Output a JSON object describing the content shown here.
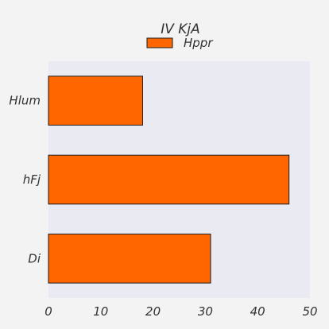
{
  "chart_data": {
    "type": "bar",
    "orientation": "horizontal",
    "title": "IV KjA",
    "categories": [
      "Hlum",
      "hFj",
      "Di"
    ],
    "series": [
      {
        "name": "Hppr",
        "values": [
          18,
          46,
          31
        ]
      }
    ],
    "xlim": [
      0,
      50
    ],
    "xticks": [
      0,
      10,
      20,
      30,
      40,
      50
    ],
    "grid": false,
    "legend": "top-center",
    "colors": {
      "bar": "#ff6600",
      "bar_edge": "#1a1a1a",
      "plot_bg": "#eaeaf2",
      "figure_bg": "#f3f3f3"
    }
  }
}
